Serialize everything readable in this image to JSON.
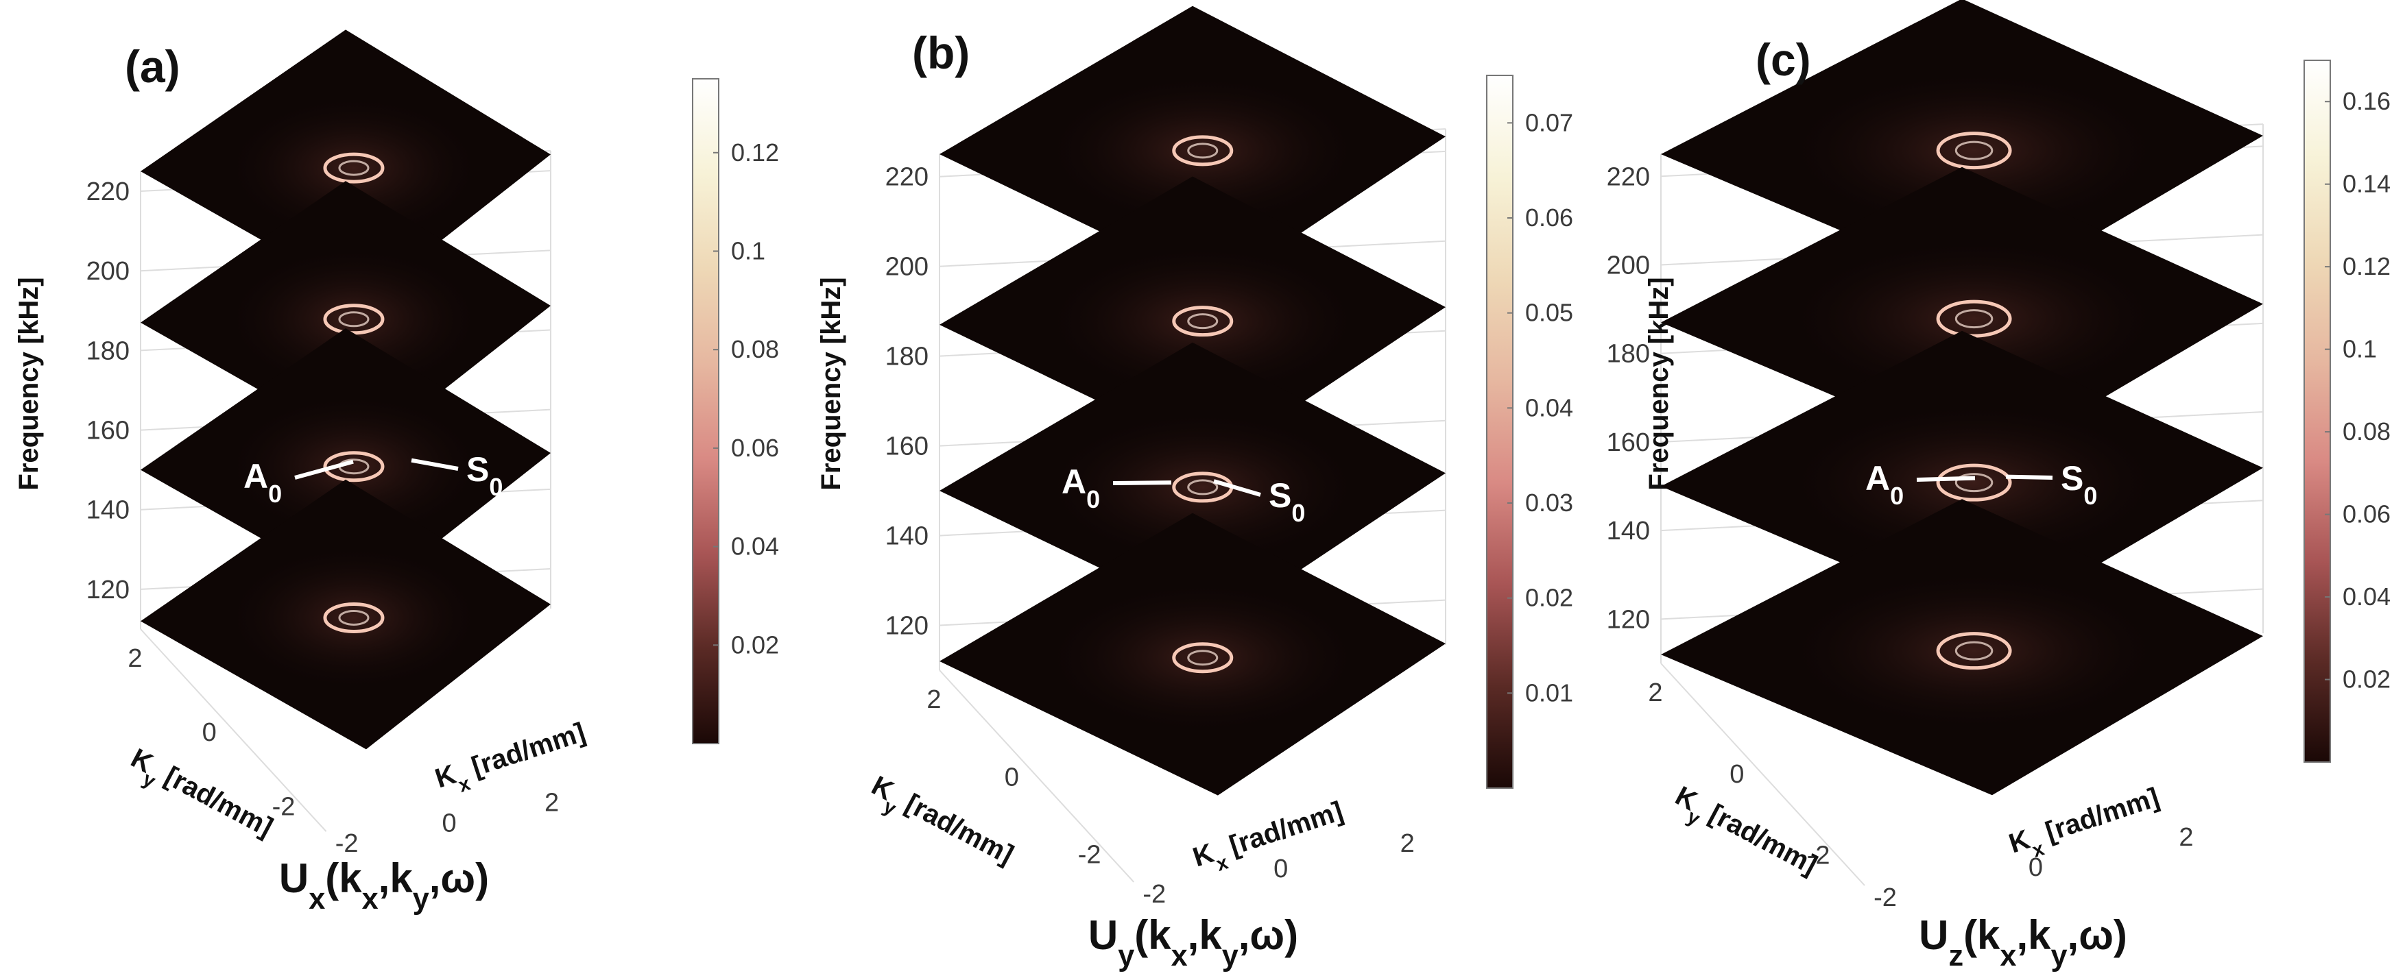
{
  "chart_data": [
    {
      "type": "heatmap",
      "panel": "(a)",
      "title": "U",
      "title_sub": "x",
      "title_args": [
        "k",
        "x",
        ",k",
        "y",
        ",ω)"
      ],
      "zlabel": "Frequency [kHz]",
      "xlabel": "K",
      "xlabel_sub": "x",
      "xlabel_unit": " [rad/mm]",
      "ylabel": "K",
      "ylabel_sub": "y",
      "ylabel_unit": " [rad/mm]",
      "z_ticks": [
        "220",
        "200",
        "180",
        "160",
        "140",
        "120"
      ],
      "x_ticks": [
        "-2",
        "0",
        "2"
      ],
      "y_ticks": [
        "2",
        "0",
        "-2"
      ],
      "zlim": [
        110,
        225
      ],
      "slices_khz": [
        225,
        187,
        150,
        112
      ],
      "colorbar_ticks": [
        "0.12",
        "0.1",
        "0.08",
        "0.06",
        "0.04",
        "0.02"
      ],
      "colorbar_values": [
        0.12,
        0.1,
        0.08,
        0.06,
        0.04,
        0.02
      ],
      "colorbar_max": 0.135,
      "annotations": [
        {
          "label": "A",
          "sub": "0"
        },
        {
          "label": "S",
          "sub": "0"
        }
      ],
      "annotation_slice_khz": 150
    },
    {
      "type": "heatmap",
      "panel": "(b)",
      "title": "U",
      "title_sub": "y",
      "title_args": [
        "k",
        "x",
        ",k",
        "y",
        ",ω)"
      ],
      "zlabel": "Frequency [kHz]",
      "xlabel": "K",
      "xlabel_sub": "x",
      "xlabel_unit": " [rad/mm]",
      "ylabel": "K",
      "ylabel_sub": "y",
      "ylabel_unit": " [rad/mm]",
      "z_ticks": [
        "220",
        "200",
        "180",
        "160",
        "140",
        "120"
      ],
      "x_ticks": [
        "-2",
        "0",
        "2"
      ],
      "y_ticks": [
        "2",
        "0",
        "-2"
      ],
      "zlim": [
        110,
        225
      ],
      "slices_khz": [
        225,
        187,
        150,
        112
      ],
      "colorbar_ticks": [
        "0.07",
        "0.06",
        "0.05",
        "0.04",
        "0.03",
        "0.02",
        "0.01"
      ],
      "colorbar_values": [
        0.07,
        0.06,
        0.05,
        0.04,
        0.03,
        0.02,
        0.01
      ],
      "colorbar_max": 0.075,
      "annotations": [
        {
          "label": "A",
          "sub": "0"
        },
        {
          "label": "S",
          "sub": "0"
        }
      ],
      "annotation_slice_khz": 150
    },
    {
      "type": "heatmap",
      "panel": "(c)",
      "title": "U",
      "title_sub": "z",
      "title_args": [
        "k",
        "x",
        ",k",
        "y",
        ",ω)"
      ],
      "zlabel": "Frequency [kHz]",
      "xlabel": "K",
      "xlabel_sub": "x",
      "xlabel_unit": " [rad/mm]",
      "ylabel": "K",
      "ylabel_sub": "y",
      "ylabel_unit": " [rad/mm]",
      "z_ticks": [
        "220",
        "200",
        "180",
        "160",
        "140",
        "120"
      ],
      "x_ticks": [
        "-2",
        "0",
        "2"
      ],
      "y_ticks": [
        "2",
        "0",
        "-2"
      ],
      "zlim": [
        110,
        225
      ],
      "slices_khz": [
        225,
        187,
        150,
        112
      ],
      "colorbar_ticks": [
        "0.16",
        "0.14",
        "0.12",
        "0.1",
        "0.08",
        "0.06",
        "0.04",
        "0.02"
      ],
      "colorbar_values": [
        0.16,
        0.14,
        0.12,
        0.1,
        0.08,
        0.06,
        0.04,
        0.02
      ],
      "colorbar_max": 0.17,
      "annotations": [
        {
          "label": "A",
          "sub": "0"
        },
        {
          "label": "S",
          "sub": "0"
        }
      ],
      "annotation_slice_khz": 150
    }
  ],
  "colors": {
    "slice_fill": "#0e0605",
    "slice_glow": "#3a1c18",
    "ring": "#f6c8b6",
    "ring_core": "#ffe9de",
    "grid": "#dddddd",
    "colormap": [
      "#1a0806",
      "#5a2a25",
      "#a85555",
      "#d98a84",
      "#e6b7a0",
      "#eed8b6",
      "#f7f2d7",
      "#ffffff"
    ]
  }
}
